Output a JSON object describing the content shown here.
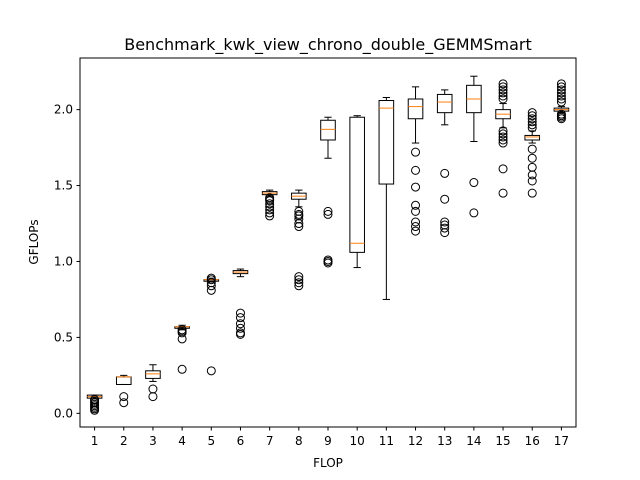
{
  "chart_data": {
    "type": "box",
    "title": "Benchmark_kwk_view_chrono_double_GEMMSmart",
    "xlabel": "FLOP",
    "ylabel": "GFLOPs",
    "ylim": [
      -0.09,
      2.34
    ],
    "yticks": [
      "0.0",
      "0.5",
      "1.0",
      "1.5",
      "2.0"
    ],
    "yticks_values": [
      0.0,
      0.5,
      1.0,
      1.5,
      2.0
    ],
    "grid": false,
    "colors": {
      "box": "#000000",
      "median": "#ff7f0e",
      "flier": "#000000"
    },
    "categories": [
      "1",
      "2",
      "3",
      "4",
      "5",
      "6",
      "7",
      "8",
      "9",
      "10",
      "11",
      "12",
      "13",
      "14",
      "15",
      "16",
      "17"
    ],
    "boxes": [
      {
        "label": "1",
        "whislo": 0.1,
        "q1": 0.1,
        "med": 0.11,
        "q3": 0.12,
        "whishi": 0.12,
        "fliers": [
          0.02,
          0.03,
          0.04,
          0.05,
          0.06,
          0.07,
          0.08,
          0.09
        ]
      },
      {
        "label": "2",
        "whislo": 0.19,
        "q1": 0.19,
        "med": 0.24,
        "q3": 0.24,
        "whishi": 0.25,
        "fliers": [
          0.07,
          0.11
        ]
      },
      {
        "label": "3",
        "whislo": 0.21,
        "q1": 0.23,
        "med": 0.26,
        "q3": 0.28,
        "whishi": 0.32,
        "fliers": [
          0.11,
          0.16
        ]
      },
      {
        "label": "4",
        "whislo": 0.55,
        "q1": 0.56,
        "med": 0.57,
        "q3": 0.57,
        "whishi": 0.58,
        "fliers": [
          0.29,
          0.49,
          0.53,
          0.54,
          0.55
        ]
      },
      {
        "label": "5",
        "whislo": 0.87,
        "q1": 0.87,
        "med": 0.88,
        "q3": 0.88,
        "whishi": 0.89,
        "fliers": [
          0.28,
          0.81,
          0.84,
          0.86,
          0.88,
          0.89
        ]
      },
      {
        "label": "6",
        "whislo": 0.9,
        "q1": 0.92,
        "med": 0.93,
        "q3": 0.94,
        "whishi": 0.95,
        "fliers": [
          0.52,
          0.53,
          0.56,
          0.59,
          0.63,
          0.66
        ]
      },
      {
        "label": "7",
        "whislo": 1.43,
        "q1": 1.44,
        "med": 1.45,
        "q3": 1.46,
        "whishi": 1.47,
        "fliers": [
          1.3,
          1.32,
          1.34,
          1.36,
          1.38,
          1.4,
          1.41,
          1.42
        ]
      },
      {
        "label": "8",
        "whislo": 1.36,
        "q1": 1.41,
        "med": 1.43,
        "q3": 1.45,
        "whishi": 1.47,
        "fliers": [
          0.84,
          0.86,
          0.88,
          0.9,
          1.23,
          1.25,
          1.28,
          1.3,
          1.31,
          1.33
        ]
      },
      {
        "label": "9",
        "whislo": 1.68,
        "q1": 1.8,
        "med": 1.87,
        "q3": 1.93,
        "whishi": 1.95,
        "fliers": [
          0.99,
          1.0,
          1.01,
          1.31,
          1.33
        ]
      },
      {
        "label": "10",
        "whislo": 0.96,
        "q1": 1.06,
        "med": 1.12,
        "q3": 1.95,
        "whishi": 1.96,
        "fliers": []
      },
      {
        "label": "11",
        "whislo": 0.75,
        "q1": 1.51,
        "med": 2.01,
        "q3": 2.06,
        "whishi": 2.08,
        "fliers": []
      },
      {
        "label": "12",
        "whislo": 1.78,
        "q1": 1.94,
        "med": 2.02,
        "q3": 2.07,
        "whishi": 2.15,
        "fliers": [
          1.2,
          1.23,
          1.26,
          1.33,
          1.37,
          1.49,
          1.6,
          1.72
        ]
      },
      {
        "label": "13",
        "whislo": 1.9,
        "q1": 1.98,
        "med": 2.05,
        "q3": 2.1,
        "whishi": 2.13,
        "fliers": [
          1.19,
          1.22,
          1.24,
          1.26,
          1.41,
          1.58
        ]
      },
      {
        "label": "14",
        "whislo": 1.79,
        "q1": 1.98,
        "med": 2.07,
        "q3": 2.16,
        "whishi": 2.22,
        "fliers": [
          1.32,
          1.52
        ]
      },
      {
        "label": "15",
        "whislo": 1.88,
        "q1": 1.94,
        "med": 1.97,
        "q3": 2.0,
        "whishi": 2.04,
        "fliers": [
          1.45,
          1.61,
          1.78,
          1.8,
          1.82,
          1.84,
          1.86,
          2.07,
          2.09,
          2.11,
          2.13,
          2.15,
          2.17
        ]
      },
      {
        "label": "16",
        "whislo": 1.78,
        "q1": 1.8,
        "med": 1.82,
        "q3": 1.83,
        "whishi": 1.86,
        "fliers": [
          1.45,
          1.53,
          1.57,
          1.62,
          1.68,
          1.74,
          1.88,
          1.9,
          1.92,
          1.94,
          1.96,
          1.98
        ]
      },
      {
        "label": "17",
        "whislo": 1.98,
        "q1": 1.99,
        "med": 2.0,
        "q3": 2.01,
        "whishi": 2.02,
        "fliers": [
          1.94,
          1.95,
          1.96,
          1.97,
          2.05,
          2.07,
          2.09,
          2.11,
          2.13,
          2.15,
          2.17
        ]
      }
    ]
  }
}
